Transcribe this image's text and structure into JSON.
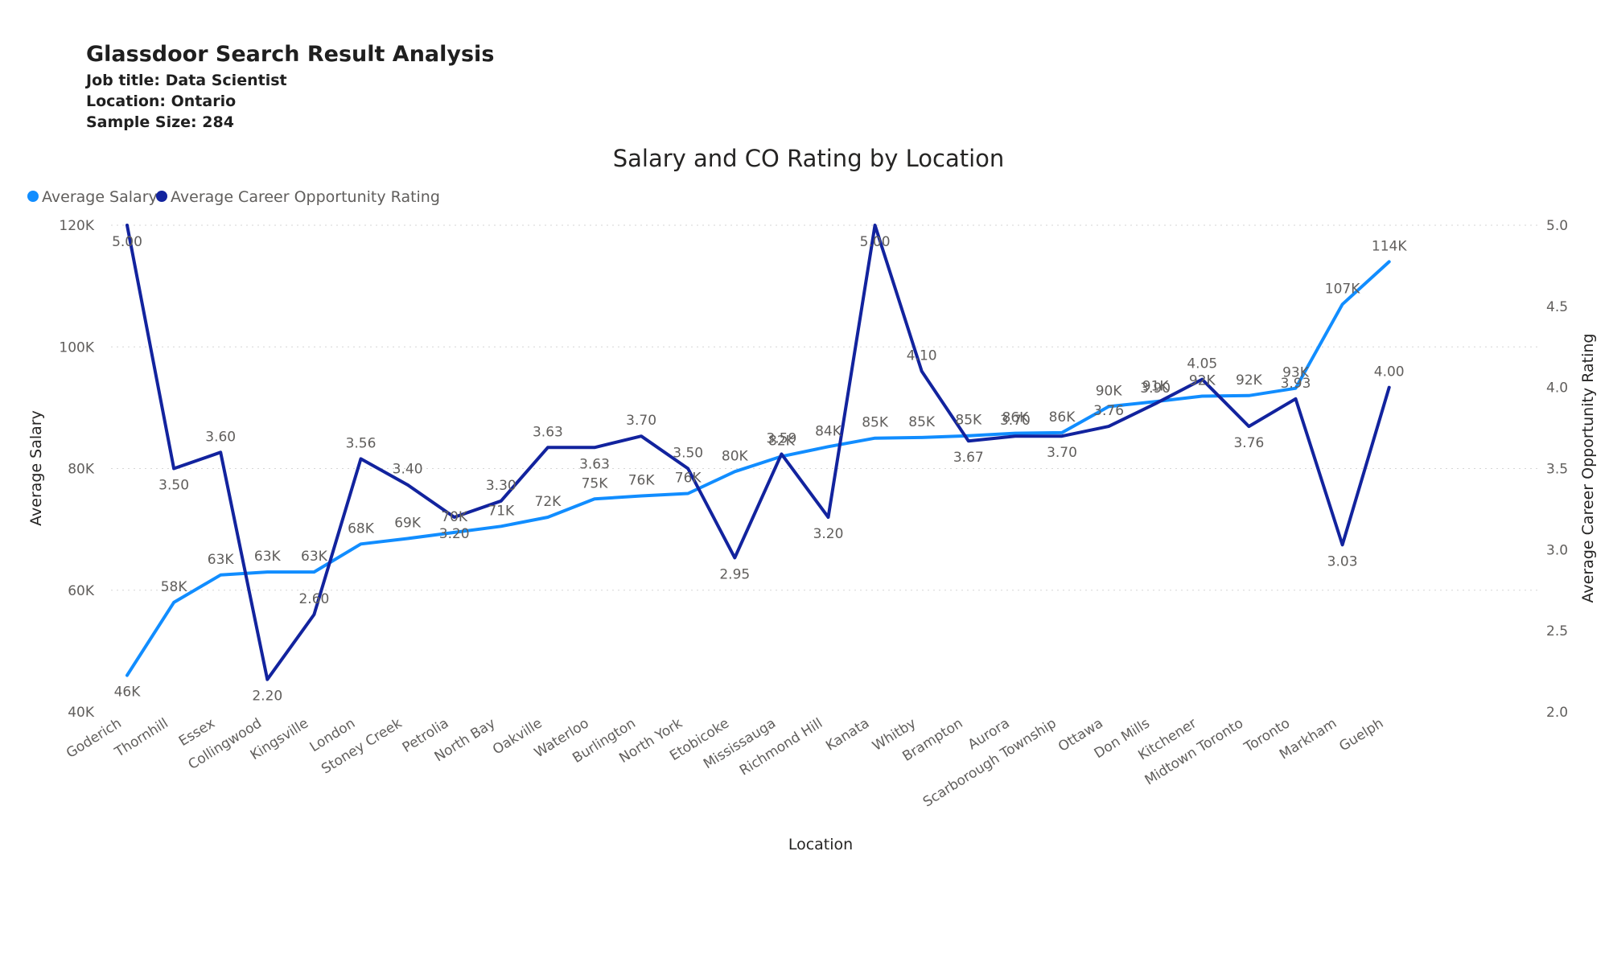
{
  "header": {
    "title": "Glassdoor Search Result Analysis",
    "job_title": "Job title: Data Scientist",
    "location": "Location: Ontario",
    "sample_size": "Sample Size: 284"
  },
  "colors": {
    "salary": "#118DFF",
    "rating": "#12239E",
    "grid": "#d6d6d6"
  },
  "chart_data": {
    "type": "line",
    "title": "Salary and CO Rating by Location",
    "xlabel": "Location",
    "ylabel": "Average Salary",
    "y2label": "Average Career Opportunity Rating",
    "ylim": [
      40000,
      120000
    ],
    "y2lim": [
      2.0,
      5.0
    ],
    "yticks": [
      "40K",
      "60K",
      "80K",
      "100K",
      "120K"
    ],
    "y2ticks": [
      "2.0",
      "2.5",
      "3.0",
      "3.5",
      "4.0",
      "4.5",
      "5.0"
    ],
    "legend_position": "top-left",
    "categories": [
      "Goderich",
      "Thornhill",
      "Essex",
      "Collingwood",
      "Kingsville",
      "London",
      "Stoney Creek",
      "Petrolia",
      "North Bay",
      "Oakville",
      "Waterloo",
      "Burlington",
      "North York",
      "Etobicoke",
      "Mississauga",
      "Richmond Hill",
      "Kanata",
      "Whitby",
      "Brampton",
      "Aurora",
      "Scarborough Township",
      "Ottawa",
      "Don Mills",
      "Kitchener",
      "Midtown Toronto",
      "Toronto",
      "Markham",
      "Guelph"
    ],
    "series": [
      {
        "name": "Average Salary",
        "axis": "left",
        "values": [
          46000,
          58000,
          62500,
          63000,
          63000,
          67600,
          68500,
          69500,
          70500,
          72000,
          75000,
          75500,
          75900,
          79500,
          82000,
          83600,
          85000,
          85100,
          85400,
          85800,
          85900,
          90200,
          91000,
          91900,
          92000,
          93200,
          107000,
          114000
        ],
        "labels": [
          "46K",
          "58K",
          "63K",
          "63K",
          "63K",
          "68K",
          "69K",
          "70K",
          "71K",
          "72K",
          "75K",
          "76K",
          "76K",
          "80K",
          "82K",
          "84K",
          "85K",
          "85K",
          "85K",
          "86K",
          "86K",
          "90K",
          "91K",
          "92K",
          "92K",
          "93K",
          "107K",
          "114K"
        ]
      },
      {
        "name": "Average Career Opportunity Rating",
        "axis": "right",
        "values": [
          5.0,
          3.5,
          3.6,
          2.2,
          2.6,
          3.56,
          3.4,
          3.2,
          3.3,
          3.63,
          3.63,
          3.7,
          3.5,
          2.95,
          3.59,
          3.2,
          5.0,
          4.1,
          3.67,
          3.7,
          3.7,
          3.76,
          3.9,
          4.05,
          3.76,
          3.93,
          3.03,
          4.0
        ],
        "labels": [
          "5.00",
          "3.50",
          "3.60",
          "2.20",
          "2.60",
          "3.56",
          "3.40",
          "3.20",
          "3.30",
          "3.63",
          "3.63",
          "3.70",
          "3.50",
          "2.95",
          "3.59",
          "3.20",
          "5.00",
          "4.10",
          "3.67",
          "3.70",
          "3.70",
          "3.76",
          "3.90",
          "4.05",
          "3.76",
          "3.93",
          "3.03",
          "4.00"
        ]
      }
    ]
  }
}
